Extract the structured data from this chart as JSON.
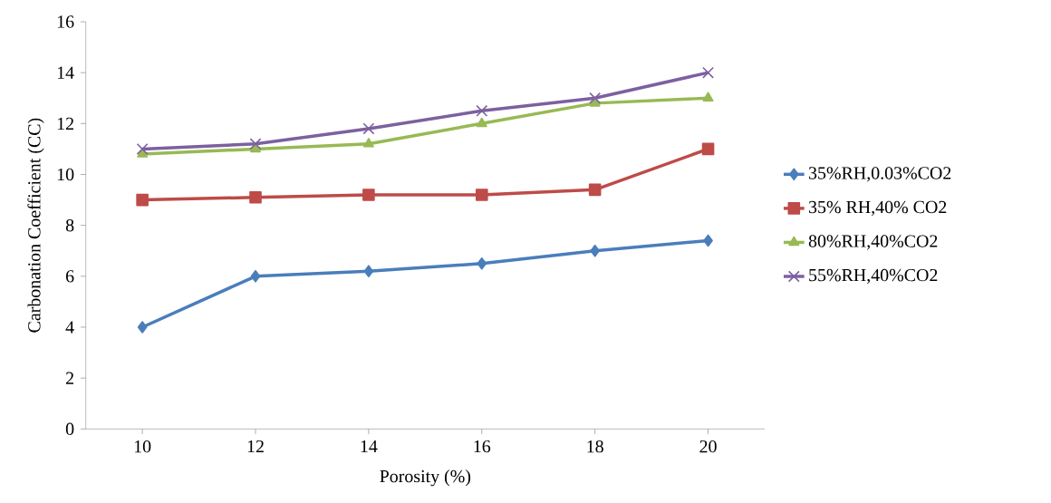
{
  "chart_data": {
    "type": "line",
    "xlabel": "Porosity (%)",
    "ylabel": "Carbonation Coefficient (CC)",
    "categories": [
      "10",
      "12",
      "14",
      "16",
      "18",
      "20"
    ],
    "ylim": [
      0,
      16
    ],
    "yticks": [
      0,
      2,
      4,
      6,
      8,
      10,
      12,
      14,
      16
    ],
    "legend": "right",
    "line_style": "solid",
    "series": [
      {
        "name": "35%RH,0.03%CO2",
        "color": "#4a7ebb",
        "marker": "diamond",
        "values": [
          4,
          6,
          6.2,
          6.5,
          7,
          7.4
        ]
      },
      {
        "name": "35% RH,40% CO2",
        "color": "#be4b48",
        "marker": "square",
        "values": [
          9,
          9.1,
          9.2,
          9.2,
          9.4,
          11
        ]
      },
      {
        "name": "80%RH,40%CO2",
        "color": "#98b954",
        "marker": "triangle",
        "values": [
          10.8,
          11,
          11.2,
          12,
          12.8,
          13
        ]
      },
      {
        "name": "55%RH,40%CO2",
        "color": "#7d60a0",
        "marker": "cross",
        "values": [
          11,
          11.2,
          11.8,
          12.5,
          13,
          14
        ]
      }
    ]
  }
}
